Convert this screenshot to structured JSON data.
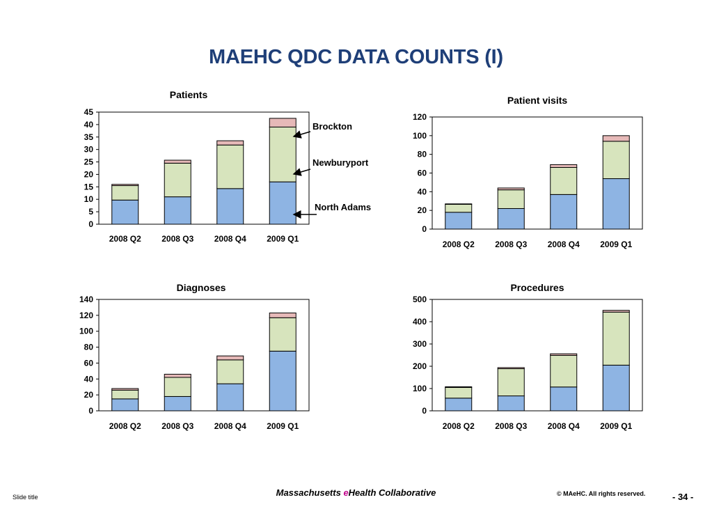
{
  "slide": {
    "title": "MAEHC QDC DATA COUNTS (I)",
    "footer_left": "Slide title",
    "footer_org_prefix": "Massachusetts ",
    "footer_org_accent": "e",
    "footer_org_suffix": "Health Collaborative",
    "copyright": "© MAeHC.  All rights reserved.",
    "page_number": "- 34 -"
  },
  "colors": {
    "north_adams": "#8eb4e3",
    "newburyport": "#d7e4bd",
    "brockton": "#e6b9b8",
    "title": "#1f3f78",
    "accent": "#c0008a"
  },
  "chart_data": [
    {
      "type": "bar",
      "stacked": true,
      "title": "Patients",
      "categories": [
        "2008 Q2",
        "2008 Q3",
        "2008 Q4",
        "2009 Q1"
      ],
      "ylim": [
        0,
        45
      ],
      "yticks": [
        0,
        5,
        10,
        15,
        20,
        25,
        30,
        35,
        40,
        45
      ],
      "series": [
        {
          "name": "North Adams",
          "values": [
            9.7,
            11,
            14.3,
            17
          ]
        },
        {
          "name": "Newburyport",
          "values": [
            5.8,
            13.5,
            17.5,
            22
          ]
        },
        {
          "name": "Brockton",
          "values": [
            0.5,
            1.2,
            1.7,
            3.5
          ]
        }
      ]
    },
    {
      "type": "bar",
      "stacked": true,
      "title": "Patient visits",
      "categories": [
        "2008 Q2",
        "2008 Q3",
        "2008 Q4",
        "2009 Q1"
      ],
      "ylim": [
        0,
        120
      ],
      "yticks": [
        0,
        20,
        40,
        60,
        80,
        100,
        120
      ],
      "series": [
        {
          "name": "North Adams",
          "values": [
            18,
            22,
            37,
            54
          ]
        },
        {
          "name": "Newburyport",
          "values": [
            8.5,
            20,
            29,
            40
          ]
        },
        {
          "name": "Brockton",
          "values": [
            0.5,
            2,
            3,
            6
          ]
        }
      ]
    },
    {
      "type": "bar",
      "stacked": true,
      "title": "Diagnoses",
      "categories": [
        "2008 Q2",
        "2008 Q3",
        "2008 Q4",
        "2009 Q1"
      ],
      "ylim": [
        0,
        140
      ],
      "yticks": [
        0,
        20,
        40,
        60,
        80,
        100,
        120,
        140
      ],
      "series": [
        {
          "name": "North Adams",
          "values": [
            15,
            18,
            34,
            75
          ]
        },
        {
          "name": "Newburyport",
          "values": [
            11,
            24,
            30,
            42
          ]
        },
        {
          "name": "Brockton",
          "values": [
            2,
            4,
            5,
            6
          ]
        }
      ]
    },
    {
      "type": "bar",
      "stacked": true,
      "title": "Procedures",
      "categories": [
        "2008 Q2",
        "2008 Q3",
        "2008 Q4",
        "2009 Q1"
      ],
      "ylim": [
        0,
        500
      ],
      "yticks": [
        0,
        100,
        200,
        300,
        400,
        500
      ],
      "series": [
        {
          "name": "North Adams",
          "values": [
            57,
            67,
            107,
            205
          ]
        },
        {
          "name": "Newburyport",
          "values": [
            48,
            122,
            142,
            238
          ]
        },
        {
          "name": "Brockton",
          "values": [
            3,
            5,
            7,
            8
          ]
        }
      ]
    }
  ],
  "annotations": [
    "Brockton",
    "Newburyport",
    "North Adams"
  ]
}
